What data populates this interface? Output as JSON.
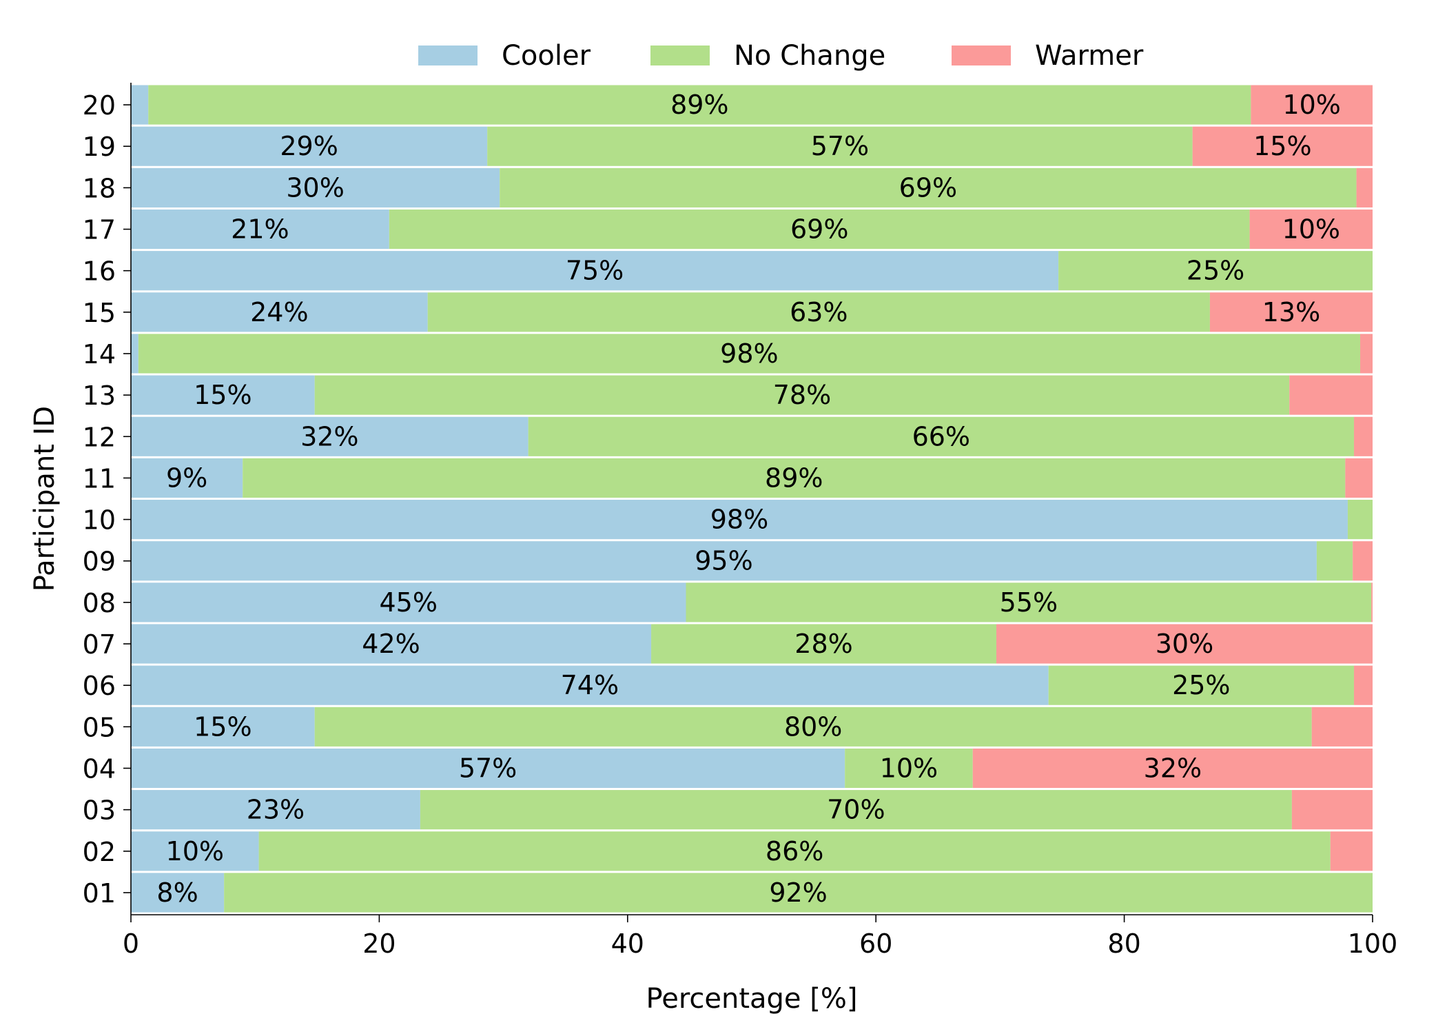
{
  "chart_data": {
    "type": "bar",
    "orientation": "horizontal",
    "stacked": true,
    "title": "",
    "xlabel": "Percentage [%]",
    "ylabel": "Participant ID",
    "xlim": [
      0,
      100
    ],
    "x_ticks": [
      0,
      20,
      40,
      60,
      80,
      100
    ],
    "grid": false,
    "legend": {
      "position": "top-center",
      "entries": [
        "Cooler",
        "No Change",
        "Warmer"
      ]
    },
    "categories": [
      "01",
      "02",
      "03",
      "04",
      "05",
      "06",
      "07",
      "08",
      "09",
      "10",
      "11",
      "12",
      "13",
      "14",
      "15",
      "16",
      "17",
      "18",
      "19",
      "20"
    ],
    "series": [
      {
        "name": "Cooler",
        "color": "#a6cee3",
        "values": [
          7.5,
          10.3,
          23.3,
          57.5,
          14.8,
          73.9,
          41.9,
          44.7,
          95.5,
          98.0,
          9.0,
          32.0,
          14.8,
          0.6,
          23.9,
          74.7,
          20.8,
          29.7,
          28.7,
          1.4
        ],
        "labels": [
          "8%",
          "10%",
          "23%",
          "57%",
          "15%",
          "74%",
          "42%",
          "45%",
          "95%",
          "98%",
          "9%",
          "32%",
          "15%",
          "",
          "24%",
          "75%",
          "21%",
          "30%",
          "29%",
          ""
        ]
      },
      {
        "name": "No Change",
        "color": "#b2df8a",
        "values": [
          92.5,
          86.3,
          70.2,
          10.3,
          80.3,
          24.6,
          27.8,
          55.2,
          2.9,
          2.0,
          88.8,
          66.5,
          78.5,
          98.4,
          63.0,
          25.3,
          69.3,
          69.0,
          56.8,
          88.8
        ],
        "labels": [
          "92%",
          "86%",
          "70%",
          "10%",
          "80%",
          "25%",
          "28%",
          "55%",
          "",
          "",
          "89%",
          "66%",
          "78%",
          "98%",
          "63%",
          "25%",
          "69%",
          "69%",
          "57%",
          "89%"
        ]
      },
      {
        "name": "Warmer",
        "color": "#fb9a99",
        "values": [
          0.0,
          3.4,
          6.5,
          32.2,
          4.9,
          1.5,
          30.3,
          0.1,
          1.6,
          0.0,
          2.2,
          1.5,
          6.7,
          1.0,
          13.1,
          0.0,
          9.9,
          1.3,
          14.5,
          9.8
        ],
        "labels": [
          "",
          "",
          "",
          "32%",
          "",
          "",
          "30%",
          "",
          "",
          "",
          "",
          "",
          "",
          "",
          "13%",
          "",
          "10%",
          "",
          "15%",
          "10%"
        ]
      }
    ]
  }
}
